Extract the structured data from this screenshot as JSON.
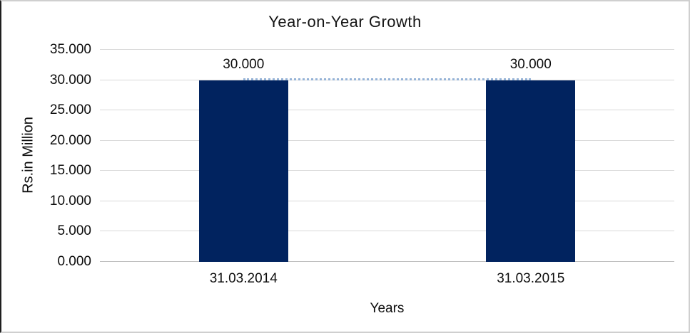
{
  "chart_data": {
    "type": "bar",
    "title": "Year-on-Year Growth",
    "xlabel": "Years",
    "ylabel": "Rs.in Million",
    "categories": [
      "31.03.2014",
      "31.03.2015"
    ],
    "series": [
      {
        "name": "value-bars",
        "type": "bar",
        "values": [
          30,
          30
        ]
      },
      {
        "name": "connector-line",
        "type": "line",
        "style": "dotted",
        "values": [
          30,
          30
        ]
      }
    ],
    "data_labels": [
      "30.000",
      "30.000"
    ],
    "ylim": [
      0,
      35
    ],
    "ytick_step": 5,
    "yticks": [
      {
        "value": 35,
        "label": "35.000"
      },
      {
        "value": 30,
        "label": "30.000"
      },
      {
        "value": 25,
        "label": "25.000"
      },
      {
        "value": 20,
        "label": "20.000"
      },
      {
        "value": 15,
        "label": "15.000"
      },
      {
        "value": 10,
        "label": "10.000"
      },
      {
        "value": 5,
        "label": "5.000"
      },
      {
        "value": 0,
        "label": "0.000"
      }
    ],
    "grid": true,
    "legend": "none",
    "colors": {
      "bar": "#01235f",
      "connector": "#95b3d7",
      "gridline": "#d9d9d9",
      "axis_line": "#bfbfbf",
      "text": "#0d0d0d"
    }
  }
}
